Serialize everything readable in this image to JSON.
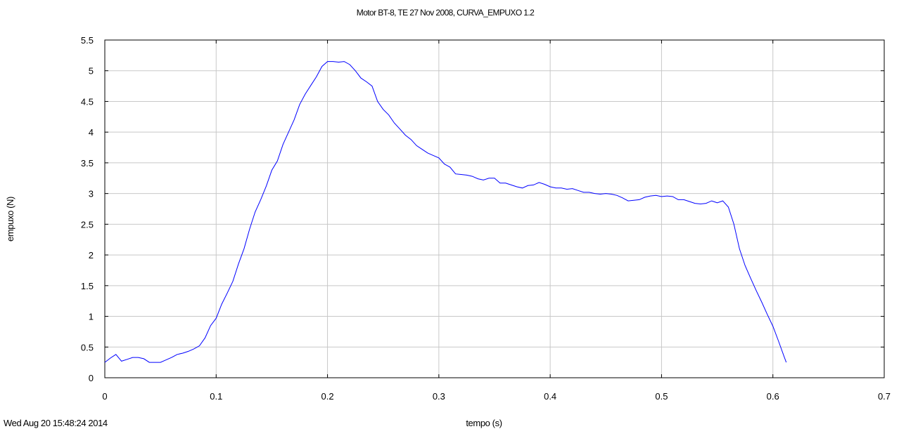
{
  "chart_data": {
    "type": "line",
    "title": "Motor BT-8, TE 27 Nov 2008, CURVA_EMPUXO 1.2",
    "xlabel": "tempo (s)",
    "ylabel": "empuxo (N)",
    "xlim": [
      0,
      0.7
    ],
    "ylim": [
      0,
      5.5
    ],
    "xticks": [
      0,
      0.1,
      0.2,
      0.3,
      0.4,
      0.5,
      0.6,
      0.7
    ],
    "xtick_labels": [
      "0",
      "0.1",
      "0.2",
      "0.3",
      "0.4",
      "0.5",
      "0.6",
      "0.7"
    ],
    "yticks": [
      0,
      0.5,
      1,
      1.5,
      2,
      2.5,
      3,
      3.5,
      4,
      4.5,
      5,
      5.5
    ],
    "ytick_labels": [
      "0",
      "0.5",
      "1",
      "1.5",
      "2",
      "2.5",
      "3",
      "3.5",
      "4",
      "4.5",
      "5",
      "5.5"
    ],
    "grid": true,
    "line_color": "#0000ff",
    "series": [
      {
        "x": [
          0,
          0.005,
          0.01,
          0.015,
          0.02,
          0.025,
          0.03,
          0.035,
          0.04,
          0.045,
          0.05,
          0.055,
          0.06,
          0.065,
          0.07,
          0.075,
          0.08,
          0.085,
          0.09,
          0.095,
          0.1,
          0.105,
          0.11,
          0.115,
          0.12,
          0.125,
          0.13,
          0.135,
          0.14,
          0.145,
          0.15,
          0.155,
          0.16,
          0.165,
          0.17,
          0.175,
          0.18,
          0.185,
          0.19,
          0.195,
          0.2,
          0.205,
          0.21,
          0.215,
          0.22,
          0.225,
          0.23,
          0.235,
          0.24,
          0.245,
          0.25,
          0.255,
          0.26,
          0.265,
          0.27,
          0.275,
          0.28,
          0.285,
          0.29,
          0.295,
          0.3,
          0.305,
          0.31,
          0.315,
          0.32,
          0.325,
          0.33,
          0.335,
          0.34,
          0.345,
          0.35,
          0.355,
          0.36,
          0.365,
          0.37,
          0.375,
          0.38,
          0.385,
          0.39,
          0.395,
          0.4,
          0.405,
          0.41,
          0.415,
          0.42,
          0.425,
          0.43,
          0.435,
          0.44,
          0.445,
          0.45,
          0.455,
          0.46,
          0.465,
          0.47,
          0.475,
          0.48,
          0.485,
          0.49,
          0.495,
          0.5,
          0.505,
          0.51,
          0.515,
          0.52,
          0.525,
          0.53,
          0.535,
          0.54,
          0.545,
          0.55,
          0.555,
          0.56,
          0.565,
          0.57,
          0.575,
          0.58,
          0.585,
          0.59,
          0.595,
          0.6,
          0.605,
          0.61,
          0.612
        ],
        "y": [
          0.25,
          0.32,
          0.38,
          0.27,
          0.3,
          0.33,
          0.33,
          0.31,
          0.25,
          0.25,
          0.25,
          0.29,
          0.33,
          0.38,
          0.4,
          0.43,
          0.47,
          0.52,
          0.65,
          0.85,
          0.97,
          1.2,
          1.38,
          1.57,
          1.85,
          2.1,
          2.42,
          2.7,
          2.9,
          3.12,
          3.38,
          3.53,
          3.8,
          4.0,
          4.2,
          4.45,
          4.62,
          4.76,
          4.9,
          5.07,
          5.15,
          5.15,
          5.14,
          5.15,
          5.1,
          5.0,
          4.88,
          4.82,
          4.75,
          4.5,
          4.37,
          4.28,
          4.15,
          4.05,
          3.95,
          3.88,
          3.78,
          3.72,
          3.66,
          3.62,
          3.58,
          3.48,
          3.43,
          3.32,
          3.31,
          3.3,
          3.28,
          3.24,
          3.22,
          3.25,
          3.25,
          3.17,
          3.17,
          3.14,
          3.11,
          3.09,
          3.13,
          3.14,
          3.18,
          3.15,
          3.11,
          3.09,
          3.09,
          3.07,
          3.08,
          3.05,
          3.02,
          3.02,
          3.0,
          2.99,
          3.0,
          2.99,
          2.97,
          2.93,
          2.88,
          2.89,
          2.9,
          2.94,
          2.96,
          2.97,
          2.95,
          2.96,
          2.95,
          2.9,
          2.9,
          2.87,
          2.84,
          2.83,
          2.84,
          2.88,
          2.85,
          2.88,
          2.78,
          2.5,
          2.1,
          1.83,
          1.62,
          1.42,
          1.23,
          1.03,
          0.84,
          0.6,
          0.35,
          0.25
        ]
      }
    ]
  },
  "timestamp": "Wed Aug 20 15:48:24 2014"
}
